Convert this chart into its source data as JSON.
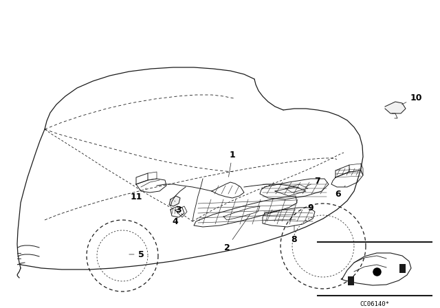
{
  "bg_color": "#ffffff",
  "line_color": "#1a1a1a",
  "figure_width": 6.4,
  "figure_height": 4.48,
  "dpi": 100,
  "ref_code": "CC06140*",
  "ref_code_fontsize": 6.5,
  "label_fontsize": 9,
  "car_lw": 0.9,
  "part_lw": 0.7,
  "dash_lw": 0.6,
  "anno_lw": 0.5
}
